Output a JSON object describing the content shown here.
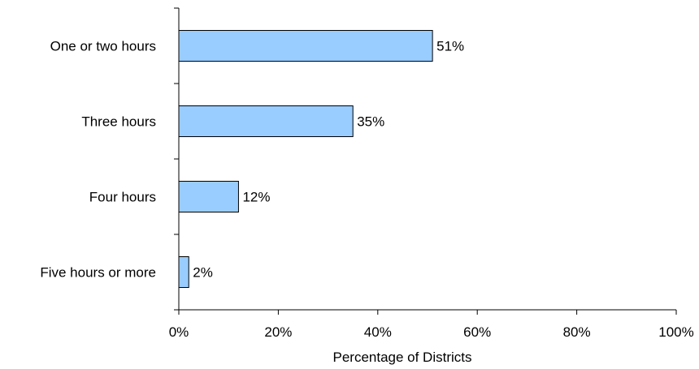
{
  "chart_data": {
    "type": "bar",
    "orientation": "horizontal",
    "categories": [
      "One or two hours",
      "Three hours",
      "Four hours",
      "Five hours or more"
    ],
    "values": [
      51,
      35,
      12,
      2
    ],
    "data_labels": [
      "51%",
      "35%",
      "12%",
      "2%"
    ],
    "title": "",
    "xlabel": "Percentage of Districts",
    "ylabel": "",
    "xlim": [
      0,
      100
    ],
    "x_ticks": [
      0,
      20,
      40,
      60,
      80,
      100
    ],
    "x_tick_labels": [
      "0%",
      "20%",
      "40%",
      "60%",
      "80%",
      "100%"
    ],
    "grid": false,
    "legend": "none",
    "bar_color": "#99CCFF",
    "bar_edge_color": "#000000"
  }
}
